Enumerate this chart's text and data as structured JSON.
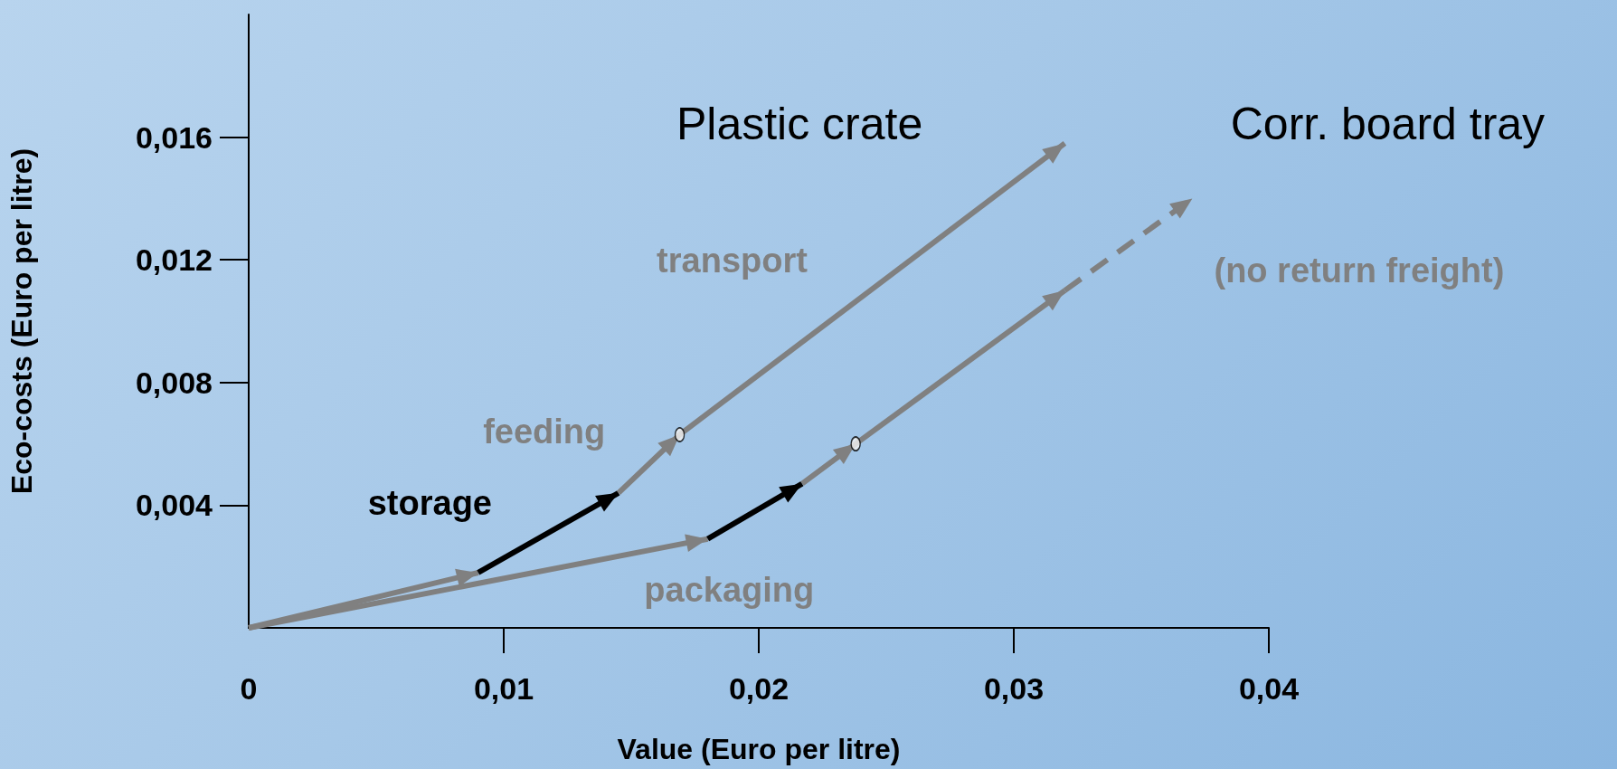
{
  "chart_data": {
    "type": "line",
    "xlabel": "Value (Euro per litre)",
    "ylabel": "Eco-costs (Euro per litre)",
    "xlim": [
      0,
      0.04
    ],
    "ylim": [
      0,
      0.02
    ],
    "xticks": [
      {
        "value": 0,
        "label": "0"
      },
      {
        "value": 0.01,
        "label": "0,01"
      },
      {
        "value": 0.02,
        "label": "0,02"
      },
      {
        "value": 0.03,
        "label": "0,03"
      },
      {
        "value": 0.04,
        "label": "0,04"
      }
    ],
    "yticks": [
      {
        "value": 0.004,
        "label": "0,004"
      },
      {
        "value": 0.008,
        "label": "0,008"
      },
      {
        "value": 0.012,
        "label": "0,012"
      },
      {
        "value": 0.016,
        "label": "0,016"
      }
    ],
    "annotations": [
      "Plastic crate",
      "Corr. board tray",
      {
        "text": "packaging",
        "x": 0.0165,
        "y": 0.00266
      },
      {
        "text": "storage",
        "x": 0.01175,
        "y": 0.0031
      },
      {
        "text": "feeding",
        "x": 0.0157,
        "y": 0.00535
      },
      {
        "text": "transport",
        "x": 0.02445,
        "y": 0.01105
      },
      {
        "text": "(no return freight)",
        "x": 0.0345,
        "y": 0.0125
      }
    ],
    "line_style": "solid",
    "series": [
      {
        "color": "#808080",
        "x": [
          0,
          0.009
        ],
        "values": [
          0,
          0.0018
        ]
      },
      {
        "color": "#808080",
        "x": [
          0,
          0.018
        ],
        "values": [
          0,
          0.0029
        ]
      },
      {
        "color": "#000000",
        "x": [
          0.009,
          0.0145
        ],
        "values": [
          0.0018,
          0.0044
        ]
      },
      {
        "color": "#000000",
        "x": [
          0.018,
          0.0217
        ],
        "values": [
          0.0029,
          0.0047
        ]
      },
      {
        "color": "#808080",
        "x": [
          0.0145,
          0.0169
        ],
        "values": [
          0.0044,
          0.0063
        ]
      },
      {
        "color": "#808080",
        "x": [
          0.0217,
          0.0238
        ],
        "values": [
          0.0047,
          0.006
        ]
      },
      {
        "color": "#808080",
        "x": [
          0.0169,
          0.032
        ],
        "values": [
          0.0063,
          0.0158
        ]
      },
      {
        "color": "#808080",
        "x": [
          0.0238,
          0.032
        ],
        "values": [
          0.006,
          0.011
        ]
      },
      {
        "color": "#808080",
        "line_style": "dashed",
        "x": [
          0.032,
          0.037
        ],
        "values": [
          0.011,
          0.014
        ]
      },
      {
        "type": "scatter",
        "marker": "circle",
        "color": "#f2f2f2",
        "x": [
          0.0169,
          0.0238
        ],
        "values": [
          0.0063,
          0.006
        ]
      }
    ]
  }
}
